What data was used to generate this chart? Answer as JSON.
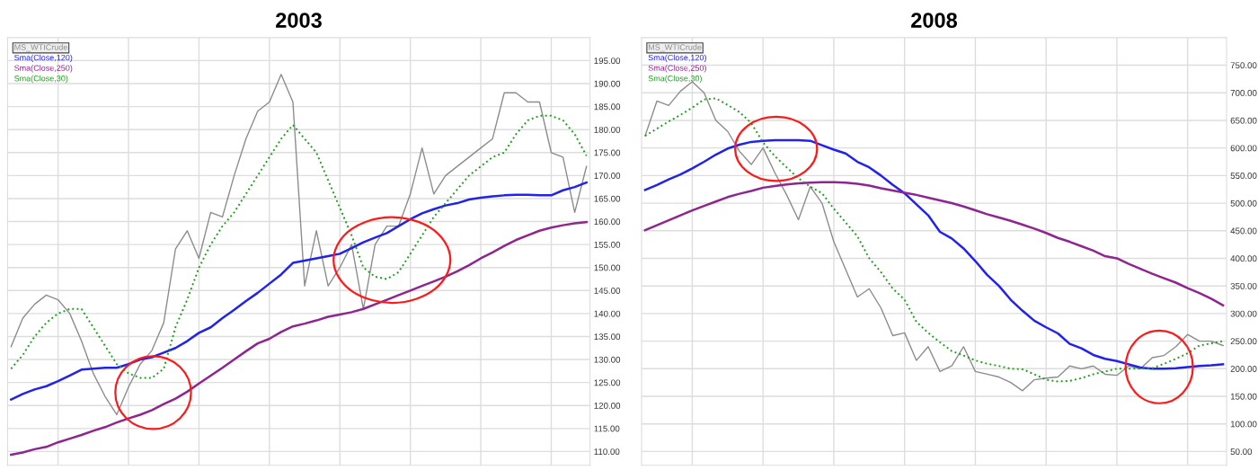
{
  "chart_data": [
    {
      "type": "line",
      "title": "2003",
      "categories": [
        null,
        null,
        null,
        null,
        null,
        null,
        null,
        null,
        null,
        null,
        null,
        null,
        null,
        null,
        null,
        null,
        null,
        null,
        null,
        null,
        null,
        null,
        null,
        null,
        null,
        null,
        null,
        null,
        null,
        null,
        null,
        null,
        null,
        null,
        null,
        null,
        null,
        null,
        null,
        null,
        null,
        null,
        null,
        null,
        null,
        null,
        null,
        null,
        null,
        null
      ],
      "ylim": [
        107,
        200
      ],
      "yticks": [
        {
          "value": 110,
          "label": "110.00"
        },
        {
          "value": 115,
          "label": "115.00"
        },
        {
          "value": 120,
          "label": "120.00"
        },
        {
          "value": 125,
          "label": "125.00"
        },
        {
          "value": 130,
          "label": "130.00"
        },
        {
          "value": 135,
          "label": "135.00"
        },
        {
          "value": 140,
          "label": "140.00"
        },
        {
          "value": 145,
          "label": "145.00"
        },
        {
          "value": 150,
          "label": "150.00"
        },
        {
          "value": 155,
          "label": "155.00"
        },
        {
          "value": 160,
          "label": "160.00"
        },
        {
          "value": 165,
          "label": "165.00"
        },
        {
          "value": 170,
          "label": "170.00"
        },
        {
          "value": 175,
          "label": "175.00"
        },
        {
          "value": 180,
          "label": "180.00"
        },
        {
          "value": 185,
          "label": "185.00"
        },
        {
          "value": 190,
          "label": "190.00"
        },
        {
          "value": 195,
          "label": "195.00"
        }
      ],
      "tick_labels": "y",
      "grid": true,
      "legend": "top left",
      "marker": "none",
      "series": [
        {
          "name": "MS_WTICrude",
          "color": "#8c8c8c",
          "line_style": "solid",
          "values": [
            132.8,
            139,
            142,
            144,
            143,
            140,
            134,
            127,
            122,
            118,
            124,
            129,
            132,
            138,
            154,
            158,
            152,
            162,
            161,
            170,
            178,
            184,
            186,
            192,
            186,
            146,
            158,
            146,
            150,
            155,
            141,
            155,
            159,
            159,
            166,
            176,
            166,
            170,
            172,
            174,
            176,
            178,
            188,
            188,
            186,
            186,
            175,
            174,
            162,
            172
          ]
        },
        {
          "name": "Sma(Close,120)",
          "color": "#2222ee",
          "line_style": "solid",
          "values": [
            121.3,
            122.5,
            123.5,
            124.2,
            125.3,
            126.5,
            127.8,
            128,
            128.2,
            128.2,
            129,
            130,
            130.5,
            131.5,
            132.5,
            134,
            135.8,
            137,
            139,
            140.8,
            142.7,
            144.5,
            146.5,
            148.5,
            151,
            151.5,
            152,
            152.5,
            153,
            154.2,
            155.5,
            156.5,
            157.5,
            159,
            160.5,
            161.8,
            162.7,
            163.5,
            164,
            164.8,
            165.2,
            165.5,
            165.7,
            165.8,
            165.8,
            165.7,
            165.7,
            166.8,
            167.5,
            168.5
          ]
        },
        {
          "name": "Sma(Close,250)",
          "color": "#8e2590",
          "line_style": "solid",
          "values": [
            109.3,
            109.8,
            110.5,
            111,
            112,
            112.8,
            113.6,
            114.5,
            115.3,
            116.3,
            117.2,
            118,
            119,
            120.3,
            121.5,
            123,
            124.8,
            126.5,
            128.2,
            130,
            131.8,
            133.5,
            134.5,
            136,
            137.2,
            137.8,
            138.5,
            139.3,
            139.8,
            140.3,
            141,
            142,
            143,
            144,
            145,
            146,
            147,
            148,
            149.2,
            150.5,
            152,
            153.3,
            154.7,
            156,
            157,
            158,
            158.7,
            159.2,
            159.6,
            159.9
          ]
        },
        {
          "name": "Sma(Close,30)",
          "color": "#1e9e1e",
          "line_style": "dotted",
          "values": [
            128,
            131,
            135,
            138,
            140,
            141,
            141,
            137,
            133,
            129,
            127,
            126,
            126,
            128,
            137,
            143,
            150,
            155,
            159,
            162,
            166,
            170,
            174,
            178,
            181,
            178,
            175,
            169,
            163,
            157,
            150,
            148,
            147.5,
            149,
            153,
            157,
            161,
            164,
            167,
            170,
            172,
            174,
            175,
            179,
            182,
            183,
            183,
            182,
            179,
            174.3
          ]
        }
      ]
    },
    {
      "type": "line",
      "title": "2008",
      "categories": [
        null,
        null,
        null,
        null,
        null,
        null,
        null,
        null,
        null,
        null,
        null,
        null,
        null,
        null,
        null,
        null,
        null,
        null,
        null,
        null,
        null,
        null,
        null,
        null,
        null,
        null,
        null,
        null,
        null,
        null,
        null,
        null,
        null,
        null,
        null,
        null,
        null,
        null,
        null,
        null,
        null,
        null,
        null,
        null,
        null,
        null,
        null,
        null,
        null,
        null
      ],
      "ylim": [
        25,
        800
      ],
      "yticks": [
        {
          "value": 50,
          "label": "50.00"
        },
        {
          "value": 100,
          "label": "100.00"
        },
        {
          "value": 150,
          "label": "150.00"
        },
        {
          "value": 200,
          "label": "200.00"
        },
        {
          "value": 250,
          "label": "250.00"
        },
        {
          "value": 300,
          "label": "300.00"
        },
        {
          "value": 350,
          "label": "350.00"
        },
        {
          "value": 400,
          "label": "400.00"
        },
        {
          "value": 450,
          "label": "450.00"
        },
        {
          "value": 500,
          "label": "500.00"
        },
        {
          "value": 550,
          "label": "550.00"
        },
        {
          "value": 600,
          "label": "600.00"
        },
        {
          "value": 650,
          "label": "650.00"
        },
        {
          "value": 700,
          "label": "700.00"
        },
        {
          "value": 750,
          "label": "750.00"
        }
      ],
      "tick_labels": "y",
      "grid": true,
      "legend": "top left",
      "marker": "none",
      "series": [
        {
          "name": "MS_WTICrude",
          "color": "#8c8c8c",
          "line_style": "solid",
          "values": [
            622,
            685,
            677,
            703,
            720,
            700,
            650,
            630,
            594,
            570,
            600,
            555,
            515,
            470,
            530,
            500,
            430,
            380,
            330,
            345,
            310,
            260,
            265,
            215,
            240,
            195,
            205,
            240,
            195,
            190,
            185,
            175,
            160,
            180,
            183,
            185,
            205,
            200,
            205,
            190,
            188,
            205,
            200,
            220,
            224,
            240,
            262,
            250,
            250,
            242
          ]
        },
        {
          "name": "Sma(Close,120)",
          "color": "#2222ee",
          "line_style": "solid",
          "values": [
            524,
            533,
            543,
            552,
            563,
            575,
            588,
            599,
            606,
            611,
            613,
            614,
            614,
            614,
            613,
            605,
            597,
            590,
            575,
            565,
            550,
            533,
            518,
            498,
            478,
            448,
            436,
            418,
            395,
            370,
            350,
            325,
            305,
            287,
            275,
            264,
            245,
            237,
            225,
            218,
            214,
            208,
            202,
            200,
            200,
            201,
            203,
            205,
            206,
            208
          ]
        },
        {
          "name": "Sma(Close,250)",
          "color": "#8e2590",
          "line_style": "solid",
          "values": [
            451,
            460,
            469,
            478,
            487,
            495,
            503,
            511,
            517,
            522,
            528,
            531,
            534,
            536,
            537,
            538,
            538,
            537,
            535,
            532,
            527,
            523,
            519,
            515,
            510,
            505,
            500,
            494,
            487,
            480,
            474,
            468,
            461,
            454,
            446,
            437,
            430,
            422,
            414,
            404,
            400,
            390,
            381,
            372,
            364,
            356,
            346,
            337,
            327,
            315
          ]
        },
        {
          "name": "Sma(Close,30)",
          "color": "#1e9e1e",
          "line_style": "dotted",
          "values": [
            622,
            635,
            648,
            660,
            673,
            688,
            690,
            678,
            665,
            645,
            610,
            585,
            565,
            545,
            530,
            518,
            490,
            465,
            440,
            400,
            375,
            345,
            325,
            285,
            265,
            248,
            232,
            224,
            215,
            209,
            205,
            200,
            199,
            190,
            180,
            177,
            178,
            183,
            190,
            195,
            200,
            200,
            200,
            201,
            209,
            218,
            228,
            242,
            246,
            250
          ]
        }
      ]
    }
  ]
}
